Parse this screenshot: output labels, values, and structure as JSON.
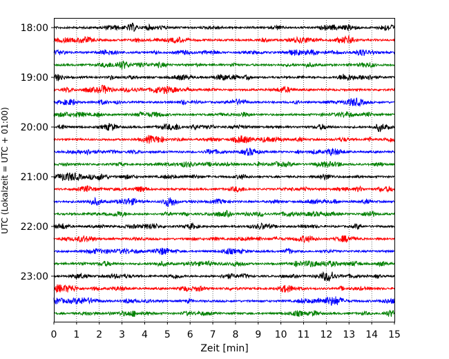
{
  "chart_data": {
    "type": "line",
    "title": "",
    "xlabel": "Zeit  [min]",
    "ylabel": "UTC (Lokalzeit = UTC + 01:00)",
    "xlim": [
      0,
      15
    ],
    "x_ticks": [
      "0",
      "1",
      "2",
      "3",
      "4",
      "5",
      "6",
      "7",
      "8",
      "9",
      "10",
      "11",
      "12",
      "13",
      "14",
      "15"
    ],
    "y_tick_labels": [
      "18:00",
      "19:00",
      "20:00",
      "21:00",
      "22:00",
      "23:00"
    ],
    "trace_start_times": [
      "18:00",
      "18:15",
      "18:30",
      "18:45",
      "19:00",
      "19:15",
      "19:30",
      "19:45",
      "20:00",
      "20:15",
      "20:30",
      "20:45",
      "21:00",
      "21:15",
      "21:30",
      "21:45",
      "22:00",
      "22:15",
      "22:30",
      "22:45",
      "23:00",
      "23:15",
      "23:30",
      "23:45"
    ],
    "trace_colors": [
      "#000000",
      "#ff0000",
      "#0000ff",
      "#008000"
    ],
    "grid": "vertical dotted lines at each minute",
    "legend": "none"
  }
}
